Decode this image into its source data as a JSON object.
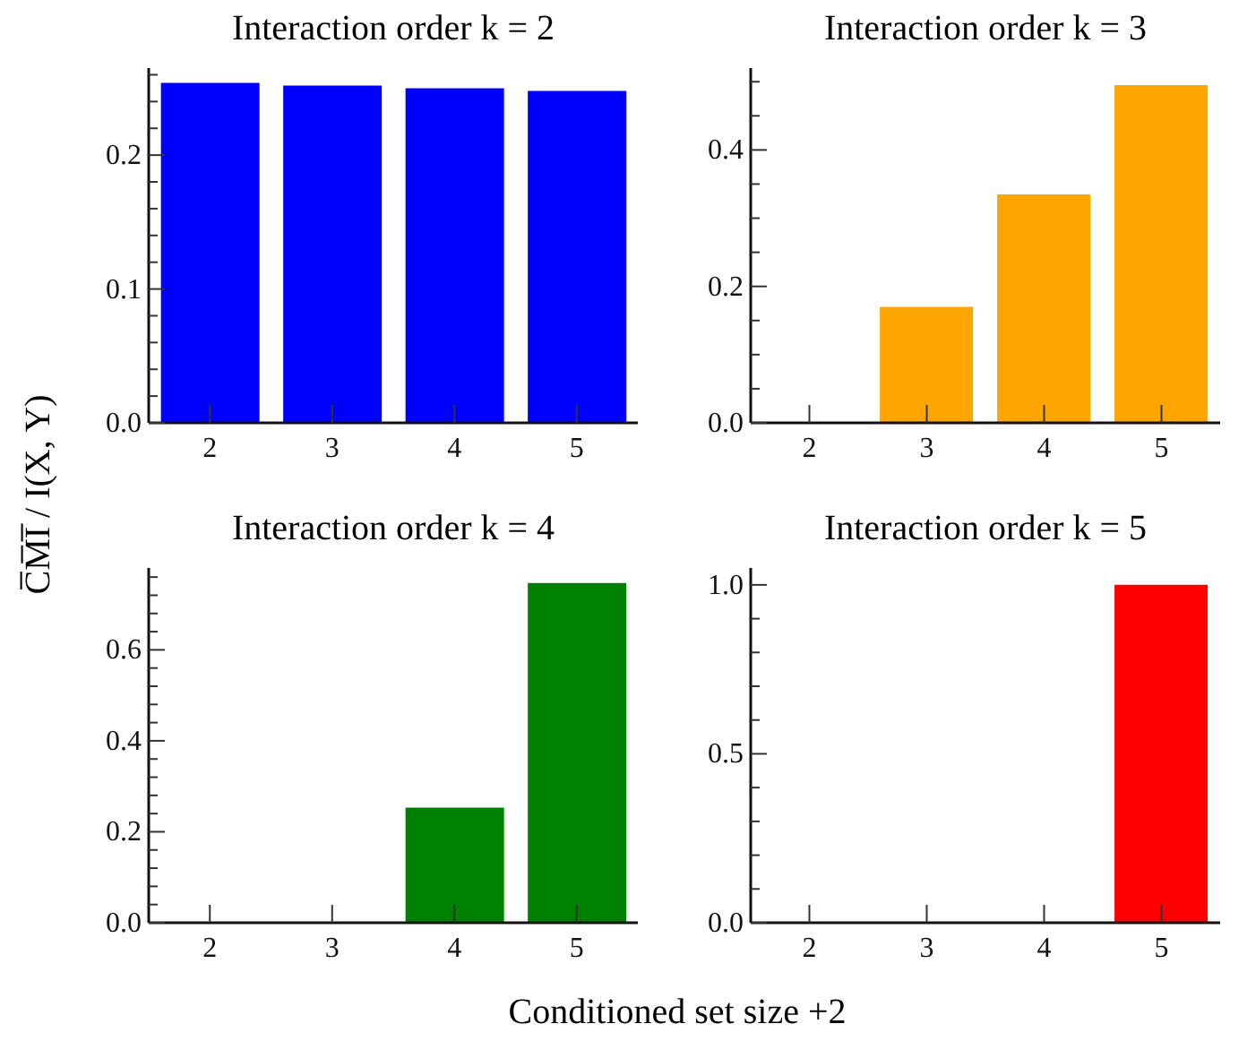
{
  "chart_data": [
    {
      "type": "bar",
      "title": "Interaction order k = 2",
      "ylabel": "C̅M̅I̅ / I(X, Y)",
      "categories": [
        "2",
        "3",
        "4",
        "5"
      ],
      "color": "#0000ff",
      "values": [
        0.254,
        0.252,
        0.25,
        0.248
      ],
      "ylim": [
        0,
        0.265
      ],
      "yticks": [
        {
          "value": 0,
          "label": "0.0"
        },
        {
          "value": 0.02,
          "label": null
        },
        {
          "value": 0.04,
          "label": null
        },
        {
          "value": 0.06,
          "label": null
        },
        {
          "value": 0.08,
          "label": null
        },
        0.1,
        {
          "value": 0.12,
          "label": null
        },
        {
          "value": 0.14,
          "label": null
        },
        {
          "value": 0.16,
          "label": null
        },
        {
          "value": 0.18,
          "label": null
        },
        0.2,
        {
          "value": 0.22,
          "label": null
        },
        {
          "value": 0.24,
          "label": null
        },
        {
          "value": 0.26,
          "label": null
        }
      ]
    },
    {
      "type": "bar",
      "title": "Interaction order k = 3",
      "categories": [
        "2",
        "3",
        "4",
        "5"
      ],
      "color": "#ffa500",
      "values": [
        0,
        0.17,
        0.335,
        0.495
      ],
      "ylim": [
        0,
        0.52
      ],
      "yticks": [
        {
          "value": 0,
          "label": "0.0"
        },
        {
          "value": 0.05,
          "label": null
        },
        {
          "value": 0.1,
          "label": null
        },
        {
          "value": 0.15,
          "label": null
        },
        0.2,
        {
          "value": 0.25,
          "label": null
        },
        {
          "value": 0.3,
          "label": null
        },
        {
          "value": 0.35,
          "label": null
        },
        0.4,
        {
          "value": 0.45,
          "label": null
        },
        {
          "value": 0.5,
          "label": null
        }
      ]
    },
    {
      "type": "bar",
      "title": "Interaction order k = 4",
      "xlabel": "Conditioned set size +2",
      "categories": [
        "2",
        "3",
        "4",
        "5"
      ],
      "color": "#008000",
      "values": [
        0,
        0,
        0.253,
        0.747
      ],
      "ylim": [
        0,
        0.78
      ],
      "yticks": [
        {
          "value": 0,
          "label": "0.0"
        },
        {
          "value": 0.04,
          "label": null
        },
        {
          "value": 0.08,
          "label": null
        },
        {
          "value": 0.12,
          "label": null
        },
        {
          "value": 0.16,
          "label": null
        },
        0.2,
        {
          "value": 0.24,
          "label": null
        },
        {
          "value": 0.28,
          "label": null
        },
        {
          "value": 0.32,
          "label": null
        },
        {
          "value": 0.36,
          "label": null
        },
        0.4,
        {
          "value": 0.44,
          "label": null
        },
        {
          "value": 0.48,
          "label": null
        },
        {
          "value": 0.52,
          "label": null
        },
        {
          "value": 0.56,
          "label": null
        },
        0.6,
        {
          "value": 0.64,
          "label": null
        },
        {
          "value": 0.68,
          "label": null
        },
        {
          "value": 0.72,
          "label": null
        },
        {
          "value": 0.76,
          "label": null
        }
      ]
    },
    {
      "type": "bar",
      "title": "Interaction order k = 5",
      "categories": [
        "2",
        "3",
        "4",
        "5"
      ],
      "color": "#ff0000",
      "values": [
        0,
        0,
        0,
        1
      ],
      "ylim": [
        0,
        1.05
      ],
      "yticks": [
        {
          "value": 0,
          "label": "0.0"
        },
        {
          "value": 0.1,
          "label": null
        },
        {
          "value": 0.2,
          "label": null
        },
        {
          "value": 0.3,
          "label": null
        },
        {
          "value": 0.4,
          "label": null
        },
        0.5,
        {
          "value": 0.6,
          "label": null
        },
        {
          "value": 0.7,
          "label": null
        },
        {
          "value": 0.8,
          "label": null
        },
        {
          "value": 0.9,
          "label": null
        },
        {
          "value": 1,
          "label": "1.0"
        }
      ]
    }
  ]
}
